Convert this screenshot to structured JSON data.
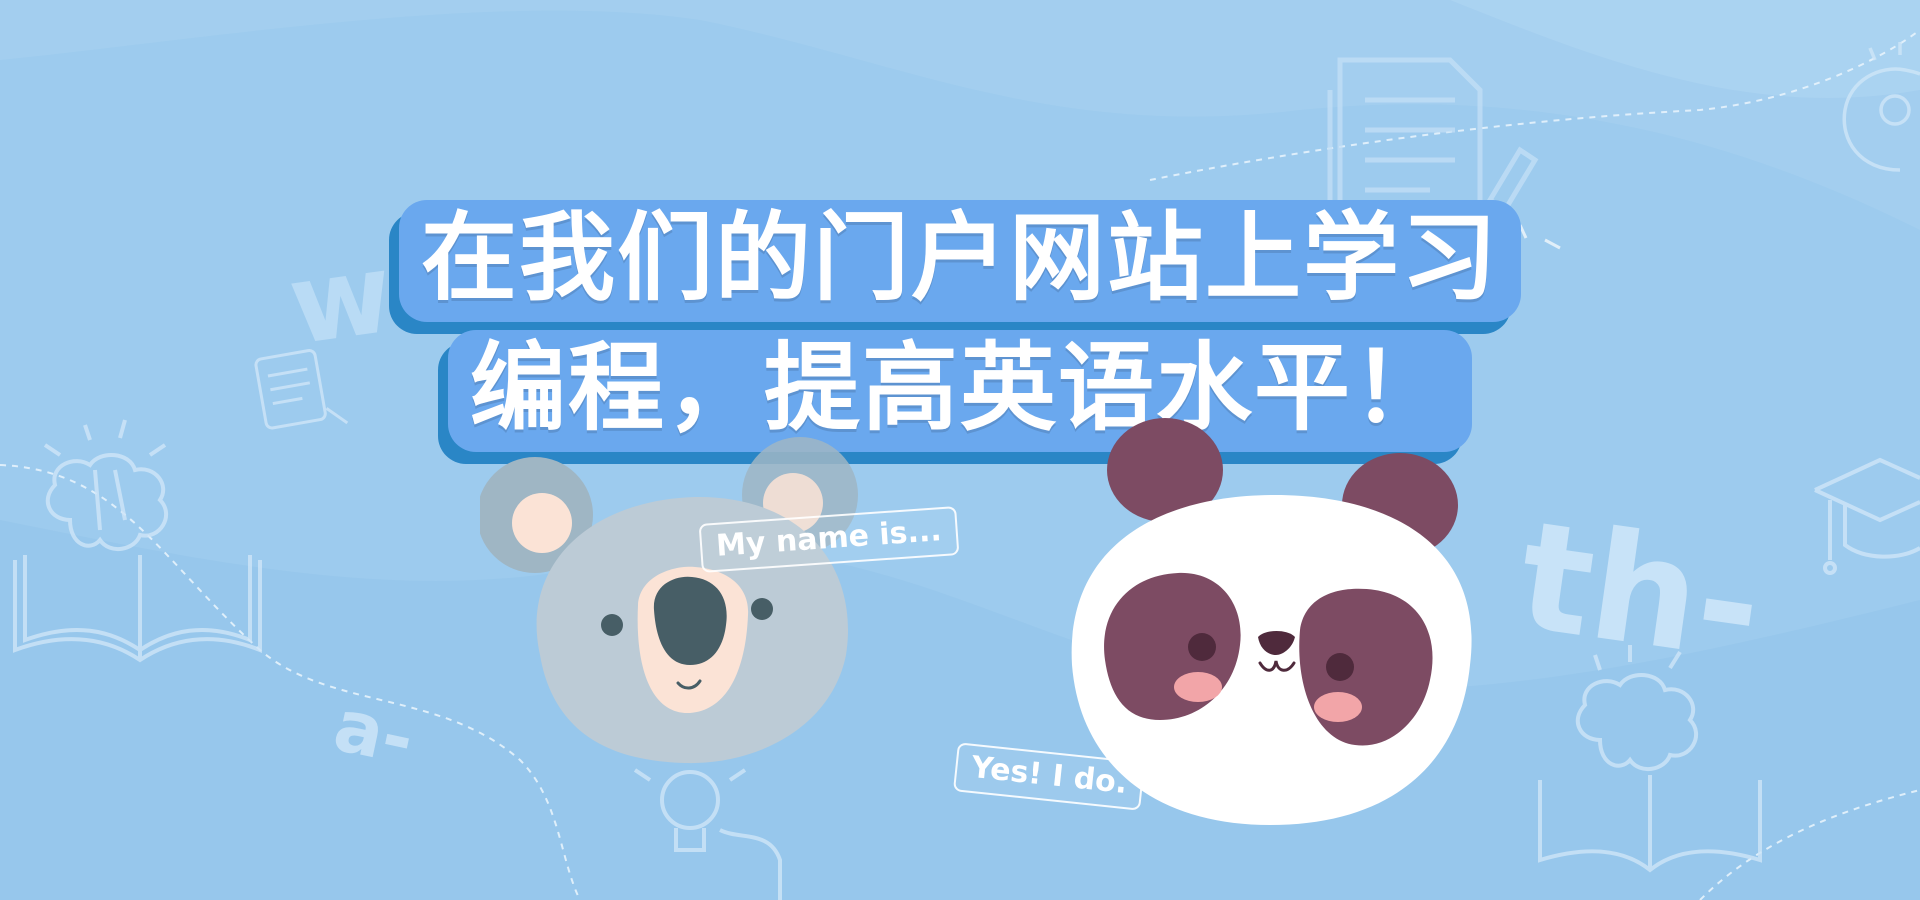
{
  "headline": {
    "line1": "在我们的门户网站上学习",
    "line2": "编程，提高英语水平！"
  },
  "speech": {
    "koala": "My name is...",
    "panda": "Yes! I do."
  },
  "decor": {
    "letter_w": "w",
    "letter_a": "a-",
    "letter_th": "th-"
  },
  "colors": {
    "background": "#9dcbee",
    "headline_fill": "#6aa8ee",
    "headline_shadow": "#2a86c6",
    "koala_fur": "#bccbd6",
    "koala_ear_outer": "#9fb6c4",
    "koala_inner": "#fbe3d6",
    "koala_nose": "#475e66",
    "panda_patch": "#7d4b63",
    "panda_cheek": "#f2a5a8"
  },
  "icons": [
    "brain-book-icon",
    "notes-icon",
    "lightbulb-icon",
    "graduation-cap-icon",
    "document-pencil-icon",
    "head-idea-icon"
  ]
}
